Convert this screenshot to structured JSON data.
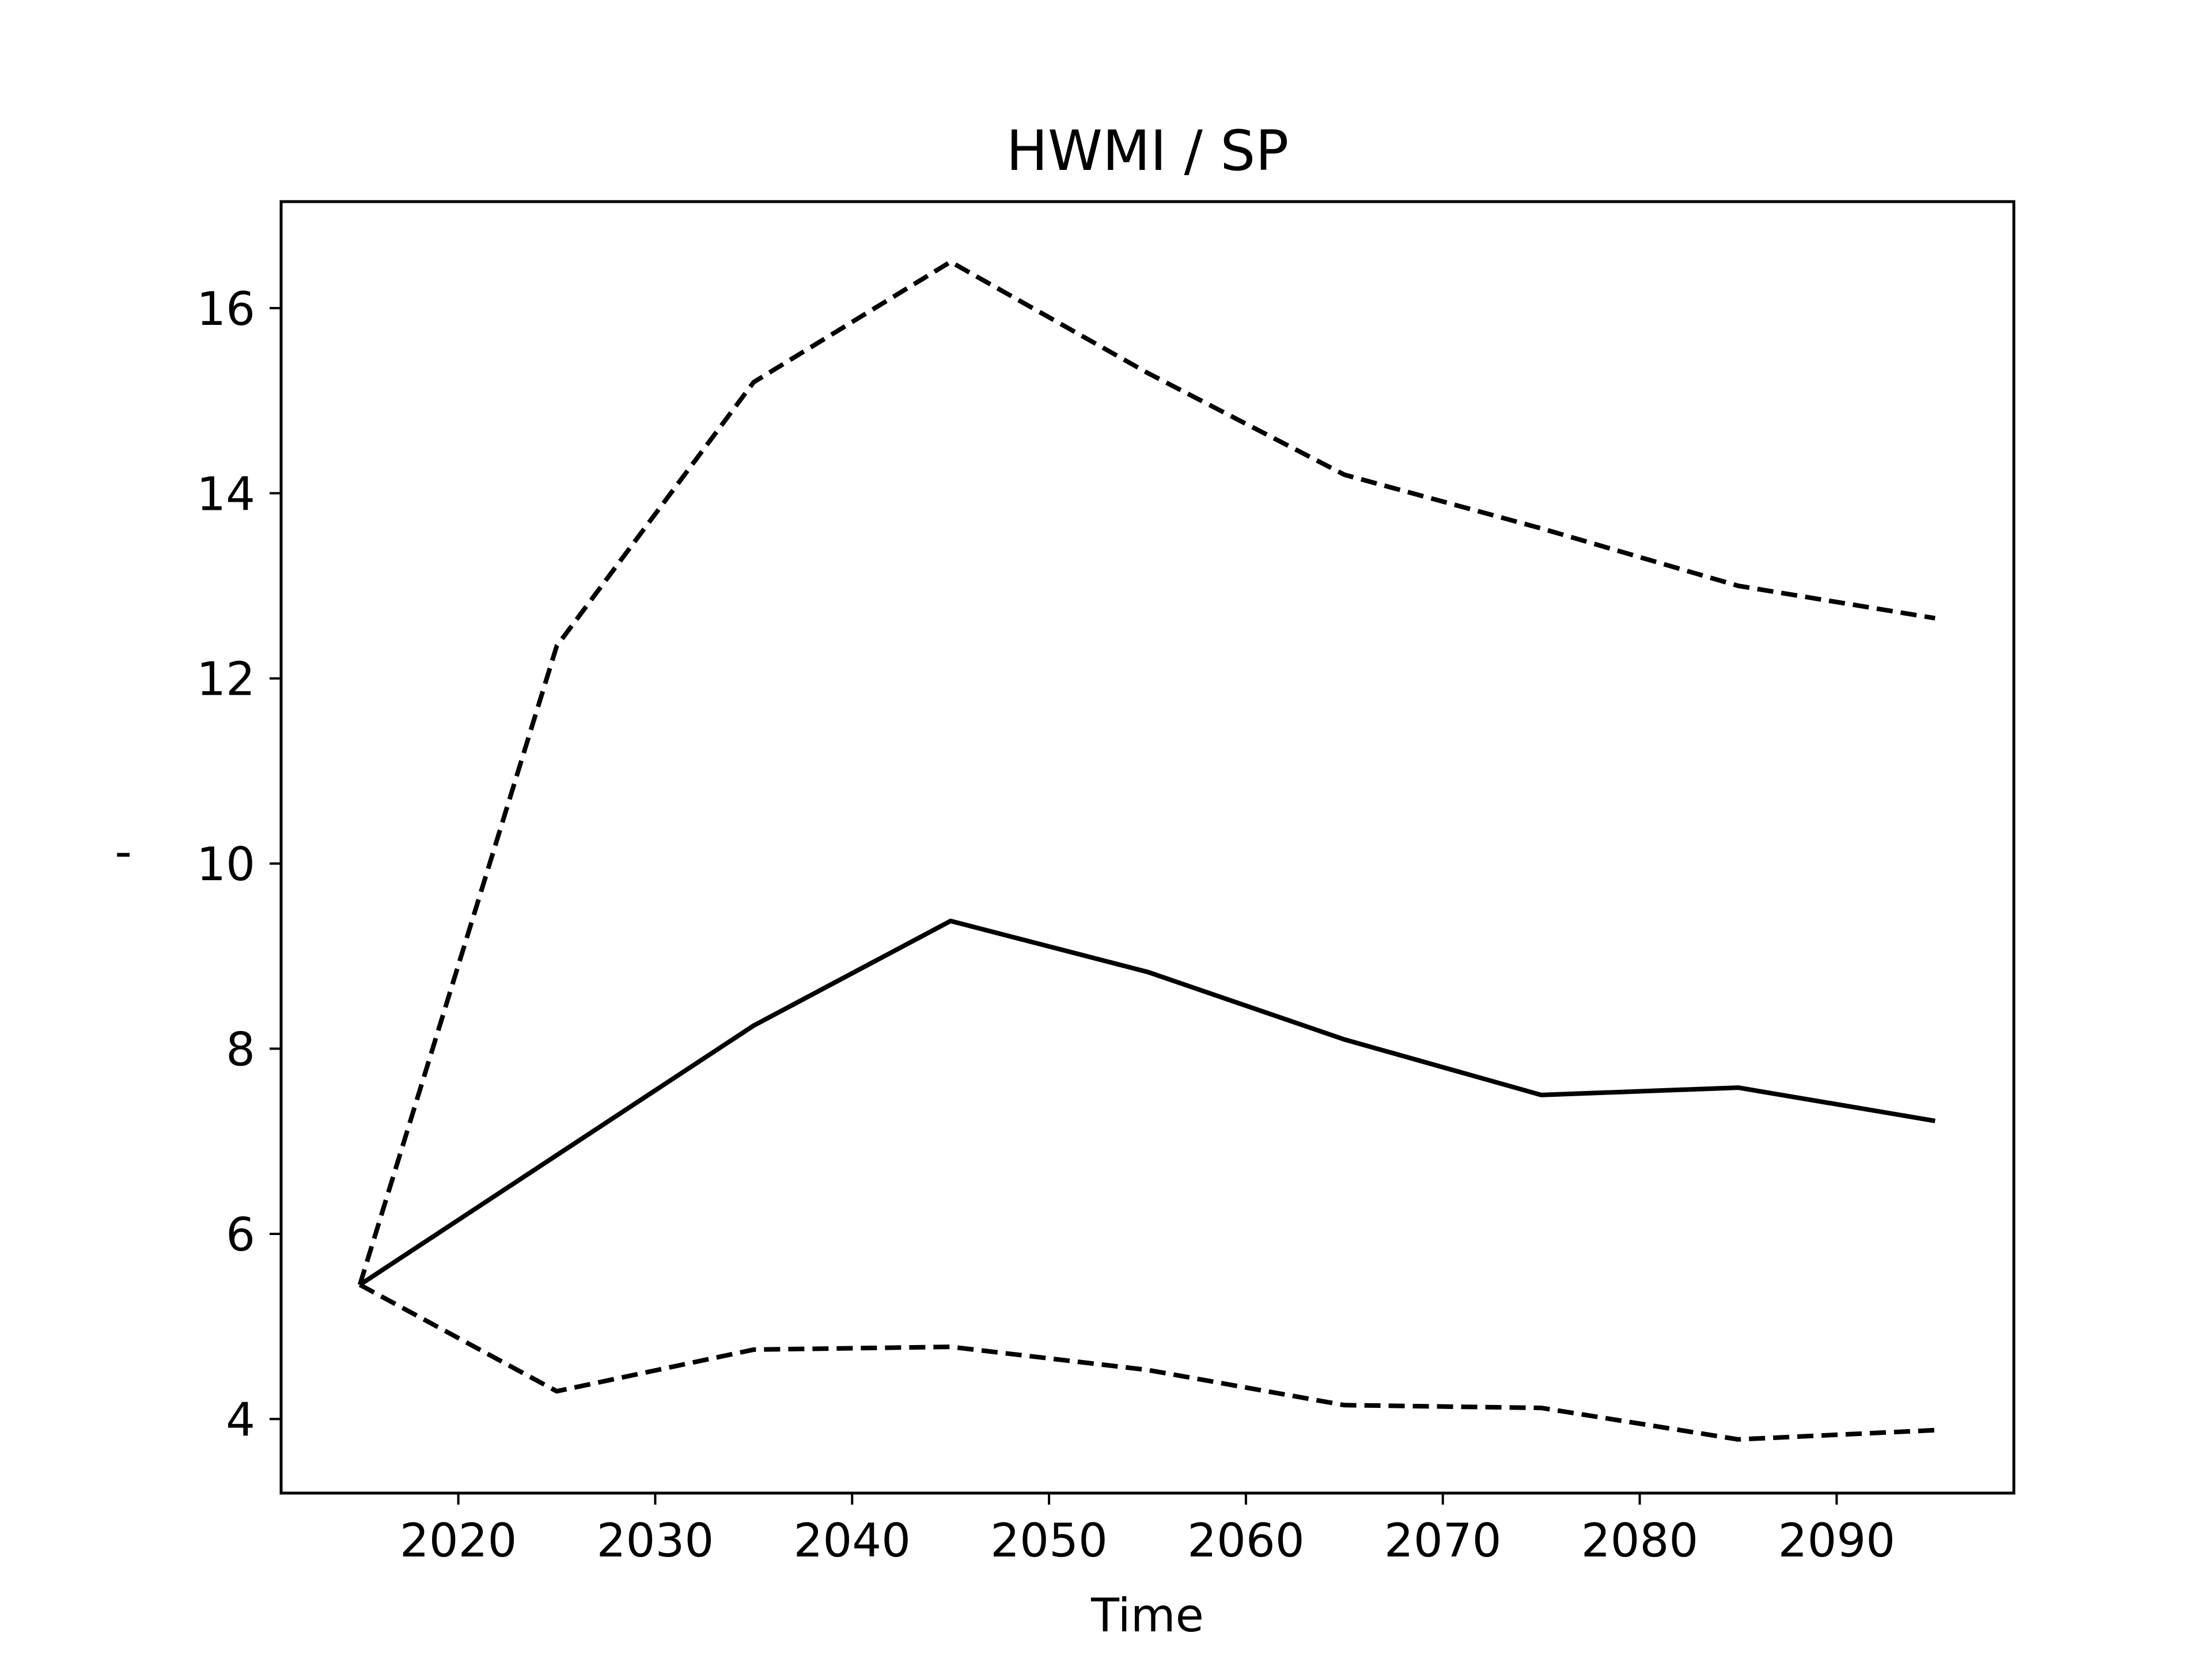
{
  "chart_data": {
    "type": "line",
    "title": "HWMI / SP",
    "xlabel": "Time",
    "ylabel": "'",
    "xlim": [
      2011,
      2099
    ],
    "ylim": [
      3.2,
      17.15
    ],
    "xticks": [
      2020,
      2030,
      2040,
      2050,
      2060,
      2070,
      2080,
      2090
    ],
    "yticks": [
      4,
      6,
      8,
      10,
      12,
      14,
      16
    ],
    "grid": false,
    "x": [
      2015,
      2025,
      2035,
      2045,
      2055,
      2065,
      2075,
      2085,
      2095
    ],
    "series": [
      {
        "style": "dashed",
        "values": [
          5.45,
          12.35,
          15.2,
          16.5,
          15.3,
          14.2,
          13.62,
          13.0,
          12.65
        ]
      },
      {
        "style": "solid",
        "values": [
          5.45,
          6.85,
          8.25,
          9.38,
          8.83,
          8.1,
          7.5,
          7.58,
          7.22
        ]
      },
      {
        "style": "dashed",
        "values": [
          5.45,
          4.3,
          4.75,
          4.78,
          4.53,
          4.15,
          4.12,
          3.78,
          3.88
        ]
      }
    ]
  }
}
